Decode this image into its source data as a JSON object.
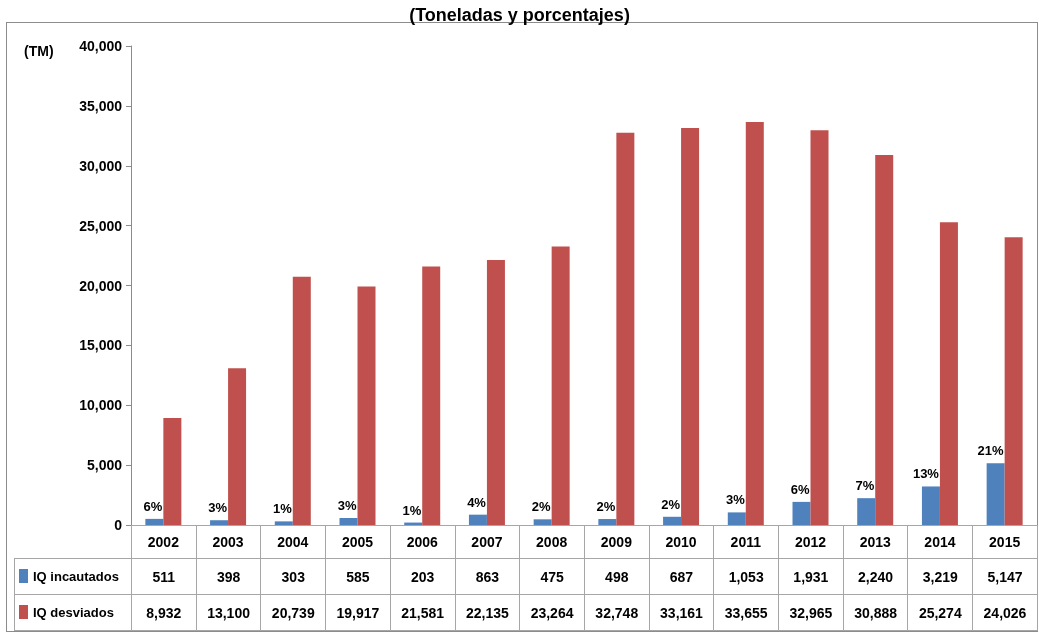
{
  "chart_data": {
    "type": "bar",
    "title": "(Toneladas y porcentajes)",
    "ylabel": "(TM)",
    "categories": [
      "2002",
      "2003",
      "2004",
      "2005",
      "2006",
      "2007",
      "2008",
      "2009",
      "2010",
      "2011",
      "2012",
      "2013",
      "2014",
      "2015"
    ],
    "series": [
      {
        "name": "IQ incautados",
        "color": "#4f81bd",
        "values": [
          511,
          398,
          303,
          585,
          203,
          863,
          475,
          498,
          687,
          1053,
          1931,
          2240,
          3219,
          5147
        ],
        "value_labels": [
          "511",
          "398",
          "303",
          "585",
          "203",
          "863",
          "475",
          "498",
          "687",
          "1,053",
          "1,931",
          "2,240",
          "3,219",
          "5,147"
        ]
      },
      {
        "name": "IQ desviados",
        "color": "#c0504d",
        "values": [
          8932,
          13100,
          20739,
          19917,
          21581,
          22135,
          23264,
          32748,
          33161,
          33655,
          32965,
          30888,
          25274,
          24026
        ],
        "value_labels": [
          "8,932",
          "13,100",
          "20,739",
          "19,917",
          "21,581",
          "22,135",
          "23,264",
          "32,748",
          "33,161",
          "33,655",
          "32,965",
          "30,888",
          "25,274",
          "24,026"
        ]
      }
    ],
    "ylim": [
      0,
      40000
    ],
    "yticks": [
      0,
      {
        "value": 5000,
        "label": "5,000"
      },
      {
        "value": 10000,
        "label": "10,000"
      },
      {
        "value": 15000,
        "label": "15,000"
      },
      {
        "value": 20000,
        "label": "20,000"
      },
      {
        "value": 25000,
        "label": "25,000"
      },
      {
        "value": 30000,
        "label": "30,000"
      },
      {
        "value": 35000,
        "label": "35,000"
      },
      {
        "value": 40000,
        "label": "40,000"
      }
    ],
    "annotations": [
      {
        "text": "6%",
        "x": "2002",
        "y": 511
      },
      {
        "text": "3%",
        "x": "2003",
        "y": 398
      },
      {
        "text": "1%",
        "x": "2004",
        "y": 303
      },
      {
        "text": "3%",
        "x": "2005",
        "y": 585
      },
      {
        "text": "1%",
        "x": "2006",
        "y": 203
      },
      {
        "text": "4%",
        "x": "2007",
        "y": 863
      },
      {
        "text": "2%",
        "x": "2008",
        "y": 475
      },
      {
        "text": "2%",
        "x": "2009",
        "y": 498
      },
      {
        "text": "2%",
        "x": "2010",
        "y": 687
      },
      {
        "text": "3%",
        "x": "2011",
        "y": 1053
      },
      {
        "text": "6%",
        "x": "2012",
        "y": 1931
      },
      {
        "text": "7%",
        "x": "2013",
        "y": 2240
      },
      {
        "text": "13%",
        "x": "2014",
        "y": 3219
      },
      {
        "text": "21%",
        "x": "2015",
        "y": 5147
      }
    ],
    "legend": "bottom"
  }
}
